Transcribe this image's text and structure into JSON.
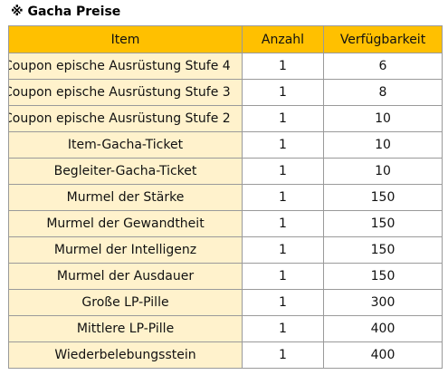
{
  "title": "※ Gacha Preise",
  "table": {
    "headers": [
      "Item",
      "Anzahl",
      "Verfügbarkeit"
    ],
    "rows": [
      {
        "item": "Coupon epische Ausrüstung Stufe 4",
        "anzahl": "1",
        "verfuegbarkeit": "6"
      },
      {
        "item": "Coupon epische Ausrüstung Stufe 3",
        "anzahl": "1",
        "verfuegbarkeit": "8"
      },
      {
        "item": "Coupon epische Ausrüstung Stufe 2",
        "anzahl": "1",
        "verfuegbarkeit": "10"
      },
      {
        "item": "Item-Gacha-Ticket",
        "anzahl": "1",
        "verfuegbarkeit": "10"
      },
      {
        "item": "Begleiter-Gacha-Ticket",
        "anzahl": "1",
        "verfuegbarkeit": "10"
      },
      {
        "item": "Murmel der Stärke",
        "anzahl": "1",
        "verfuegbarkeit": "150"
      },
      {
        "item": "Murmel der Gewandtheit",
        "anzahl": "1",
        "verfuegbarkeit": "150"
      },
      {
        "item": "Murmel der Intelligenz",
        "anzahl": "1",
        "verfuegbarkeit": "150"
      },
      {
        "item": "Murmel der Ausdauer",
        "anzahl": "1",
        "verfuegbarkeit": "150"
      },
      {
        "item": "Große LP-Pille",
        "anzahl": "1",
        "verfuegbarkeit": "300"
      },
      {
        "item": "Mittlere LP-Pille",
        "anzahl": "1",
        "verfuegbarkeit": "400"
      },
      {
        "item": "Wiederbelebungsstein",
        "anzahl": "1",
        "verfuegbarkeit": "400"
      }
    ]
  }
}
